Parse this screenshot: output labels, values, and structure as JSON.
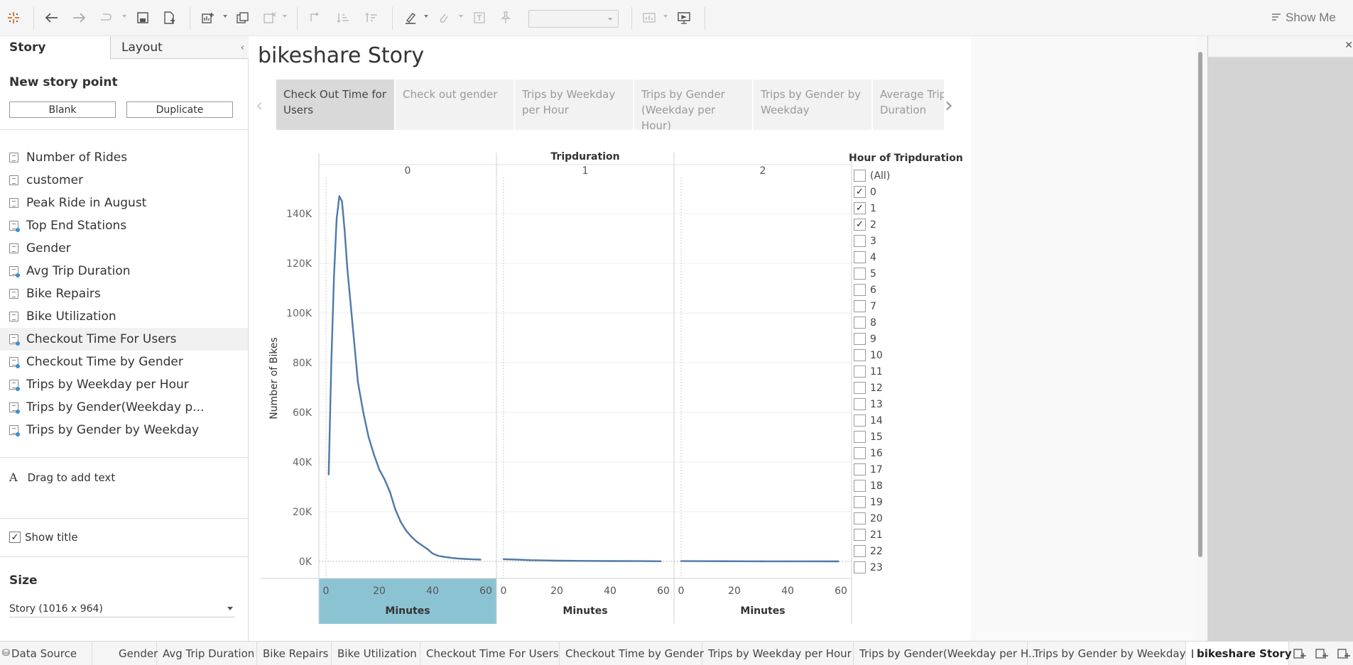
{
  "toolbar": {
    "show_me_label": "Show Me"
  },
  "left_panel": {
    "tabs": [
      "Story",
      "Layout"
    ],
    "new_story_point_heading": "New story point",
    "blank_button": "Blank",
    "duplicate_button": "Duplicate",
    "sheets": [
      "Number of Rides",
      "customer",
      "Peak Ride in August",
      "Top End Stations",
      "Gender",
      "Avg Trip Duration",
      "Bike Repairs",
      "Bike Utilization",
      "Checkout Time For Users",
      "Checkout Time by Gender",
      "Trips by Weekday per Hour",
      "Trips by Gender(Weekday p...",
      "Trips by Gender by Weekday"
    ],
    "drag_text_icon": "A",
    "drag_text_label": "Drag to add text",
    "show_title_label": "Show title",
    "size_heading": "Size",
    "size_value": "Story (1016 x 964)"
  },
  "story": {
    "title": "bikeshare Story",
    "points": [
      "Check Out Time for Users",
      "Check out gender",
      "Trips by Weekday per Hour",
      "Trips by Gender (Weekday per Hour)",
      "Trips by Gender by Weekday",
      "Average Trip Duration"
    ]
  },
  "chart_data": {
    "type": "line",
    "title": "",
    "column_header": "Tripduration",
    "panels": [
      "0",
      "1",
      "2"
    ],
    "xlabel": "Minutes",
    "ylabel": "Number of Bikes",
    "x_ticks": [
      "0",
      "20",
      "40",
      "60"
    ],
    "y_ticks": [
      "0K",
      "20K",
      "40K",
      "60K",
      "80K",
      "100K",
      "120K",
      "140K"
    ],
    "xlim": [
      0,
      60
    ],
    "ylim": [
      0,
      150000
    ],
    "series": [
      {
        "panel": "0",
        "x": [
          1,
          2,
          3,
          4,
          5,
          6,
          7,
          8,
          10,
          12,
          14,
          16,
          18,
          20,
          22,
          24,
          26,
          28,
          30,
          32,
          34,
          36,
          38,
          40,
          42,
          44,
          46,
          48,
          50,
          52,
          54,
          56,
          58
        ],
        "values": [
          35000,
          80000,
          115000,
          138000,
          147000,
          145000,
          133000,
          118000,
          95000,
          72000,
          60000,
          50000,
          43000,
          37000,
          33000,
          28000,
          21000,
          16000,
          12500,
          10000,
          8000,
          6500,
          5000,
          3200,
          2300,
          1900,
          1600,
          1300,
          1100,
          1000,
          900,
          800,
          700
        ]
      },
      {
        "panel": "1",
        "x": [
          0,
          5,
          10,
          20,
          30,
          40,
          50,
          59
        ],
        "values": [
          900,
          700,
          500,
          300,
          200,
          150,
          100,
          50
        ]
      },
      {
        "panel": "2",
        "x": [
          0,
          10,
          20,
          30,
          40,
          50,
          59
        ],
        "values": [
          100,
          80,
          60,
          40,
          30,
          20,
          10
        ]
      }
    ],
    "grid": true,
    "legend_position": "right"
  },
  "filter": {
    "title": "Hour of Tripduration",
    "options": [
      {
        "label": "(All)",
        "checked": false
      },
      {
        "label": "0",
        "checked": true
      },
      {
        "label": "1",
        "checked": true
      },
      {
        "label": "2",
        "checked": true
      },
      {
        "label": "3",
        "checked": false
      },
      {
        "label": "4",
        "checked": false
      },
      {
        "label": "5",
        "checked": false
      },
      {
        "label": "6",
        "checked": false
      },
      {
        "label": "7",
        "checked": false
      },
      {
        "label": "8",
        "checked": false
      },
      {
        "label": "9",
        "checked": false
      },
      {
        "label": "10",
        "checked": false
      },
      {
        "label": "11",
        "checked": false
      },
      {
        "label": "12",
        "checked": false
      },
      {
        "label": "13",
        "checked": false
      },
      {
        "label": "14",
        "checked": false
      },
      {
        "label": "15",
        "checked": false
      },
      {
        "label": "16",
        "checked": false
      },
      {
        "label": "17",
        "checked": false
      },
      {
        "label": "18",
        "checked": false
      },
      {
        "label": "19",
        "checked": false
      },
      {
        "label": "20",
        "checked": false
      },
      {
        "label": "21",
        "checked": false
      },
      {
        "label": "22",
        "checked": false
      },
      {
        "label": "23",
        "checked": false
      }
    ]
  },
  "bottom_tabs": [
    "Data Source",
    "Gender",
    "Avg Trip Duration",
    "Bike Repairs",
    "Bike Utilization",
    "Checkout Time For Users",
    "Checkout Time by Gender",
    "Trips by Weekday per Hour",
    "Trips by Gender(Weekday per H...",
    "Trips by Gender by Weekday",
    "bikeshare Story"
  ],
  "colors": {
    "line": "#4e79a7",
    "selected_axis": "#8cc3d3",
    "active_story_point": "#d9d9d9"
  }
}
